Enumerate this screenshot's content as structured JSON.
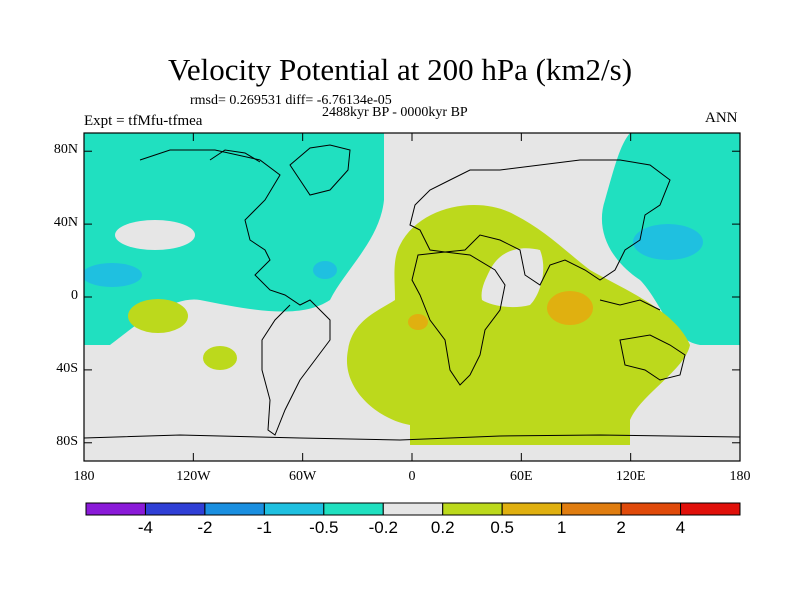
{
  "chart_data": {
    "type": "heatmap",
    "title": "Velocity Potential at 200 hPa (km2/s)",
    "stats_text": "rmsd= 0.269531 diff= -6.76134e-05",
    "experiment": "Expt = tfMfu-tfmea",
    "period": "2488kyr BP - 0000kyr BP",
    "season": "ANN",
    "y_ticks": [
      "80N",
      "40N",
      "0",
      "40S",
      "80S"
    ],
    "x_ticks": [
      "180",
      "120W",
      "60W",
      "0",
      "60E",
      "120E",
      "180"
    ],
    "lon_range": [
      -180,
      180
    ],
    "lat_range": [
      -90,
      90
    ],
    "colorbar": {
      "labels": [
        "-4",
        "-2",
        "-1",
        "-0.5",
        "-0.2",
        "0.2",
        "0.5",
        "1",
        "2",
        "4"
      ],
      "colors": [
        "#8a1ad8",
        "#2f3fd6",
        "#1a8fe0",
        "#1fc0e0",
        "#20e0c0",
        "#e6e6e6",
        "#bcd91c",
        "#e0b010",
        "#e07d10",
        "#e04a0a",
        "#e0100a"
      ]
    },
    "field_summary": [
      {
        "region": "North Atlantic / North America / North Pacific",
        "class": "-0.5 to -0.2"
      },
      {
        "region": "East Asia / NW Pacific",
        "class": "-0.5 to -0.2"
      },
      {
        "region": "Africa / Indian Ocean / Southern Ocean",
        "class": "0.2 to 0.5"
      },
      {
        "region": "Indian Ocean near 80E 10S",
        "class": "0.5 to 1"
      }
    ]
  },
  "colors": {
    "background": "#ffffff",
    "neutral": "#e6e6e6"
  }
}
